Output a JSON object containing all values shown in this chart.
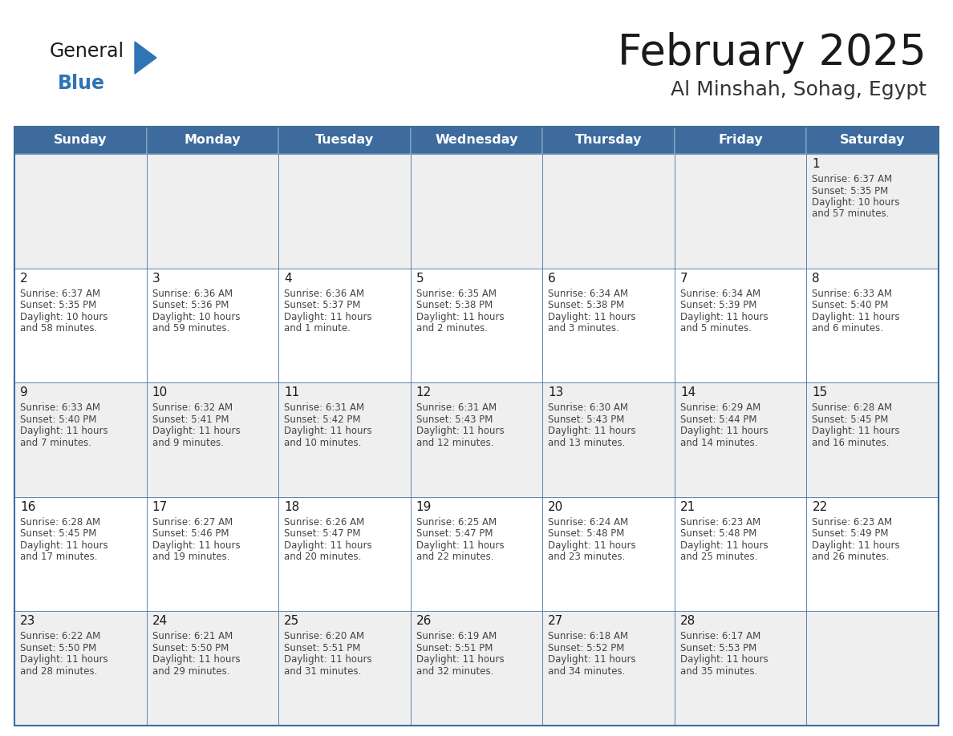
{
  "title": "February 2025",
  "subtitle": "Al Minshah, Sohag, Egypt",
  "days_of_week": [
    "Sunday",
    "Monday",
    "Tuesday",
    "Wednesday",
    "Thursday",
    "Friday",
    "Saturday"
  ],
  "header_bg": "#3D6B9E",
  "header_text": "#FFFFFF",
  "cell_bg_row0": "#EFEFEF",
  "cell_bg_row1": "#FFFFFF",
  "cell_bg_row2": "#EFEFEF",
  "cell_bg_row3": "#FFFFFF",
  "cell_bg_row4": "#EFEFEF",
  "border_color": "#3D6B9E",
  "title_color": "#1a1a1a",
  "subtitle_color": "#333333",
  "day_num_color": "#1a1a1a",
  "cell_text_color": "#444444",
  "logo_general_color": "#1a1a1a",
  "logo_blue_color": "#2E75B6",
  "logo_triangle_color": "#2E75B6",
  "calendar_data": [
    [
      null,
      null,
      null,
      null,
      null,
      null,
      {
        "day": 1,
        "sunrise": "6:37 AM",
        "sunset": "5:35 PM",
        "daylight": "10 hours",
        "daylight2": "and 57 minutes."
      }
    ],
    [
      {
        "day": 2,
        "sunrise": "6:37 AM",
        "sunset": "5:35 PM",
        "daylight": "10 hours",
        "daylight2": "and 58 minutes."
      },
      {
        "day": 3,
        "sunrise": "6:36 AM",
        "sunset": "5:36 PM",
        "daylight": "10 hours",
        "daylight2": "and 59 minutes."
      },
      {
        "day": 4,
        "sunrise": "6:36 AM",
        "sunset": "5:37 PM",
        "daylight": "11 hours",
        "daylight2": "and 1 minute."
      },
      {
        "day": 5,
        "sunrise": "6:35 AM",
        "sunset": "5:38 PM",
        "daylight": "11 hours",
        "daylight2": "and 2 minutes."
      },
      {
        "day": 6,
        "sunrise": "6:34 AM",
        "sunset": "5:38 PM",
        "daylight": "11 hours",
        "daylight2": "and 3 minutes."
      },
      {
        "day": 7,
        "sunrise": "6:34 AM",
        "sunset": "5:39 PM",
        "daylight": "11 hours",
        "daylight2": "and 5 minutes."
      },
      {
        "day": 8,
        "sunrise": "6:33 AM",
        "sunset": "5:40 PM",
        "daylight": "11 hours",
        "daylight2": "and 6 minutes."
      }
    ],
    [
      {
        "day": 9,
        "sunrise": "6:33 AM",
        "sunset": "5:40 PM",
        "daylight": "11 hours",
        "daylight2": "and 7 minutes."
      },
      {
        "day": 10,
        "sunrise": "6:32 AM",
        "sunset": "5:41 PM",
        "daylight": "11 hours",
        "daylight2": "and 9 minutes."
      },
      {
        "day": 11,
        "sunrise": "6:31 AM",
        "sunset": "5:42 PM",
        "daylight": "11 hours",
        "daylight2": "and 10 minutes."
      },
      {
        "day": 12,
        "sunrise": "6:31 AM",
        "sunset": "5:43 PM",
        "daylight": "11 hours",
        "daylight2": "and 12 minutes."
      },
      {
        "day": 13,
        "sunrise": "6:30 AM",
        "sunset": "5:43 PM",
        "daylight": "11 hours",
        "daylight2": "and 13 minutes."
      },
      {
        "day": 14,
        "sunrise": "6:29 AM",
        "sunset": "5:44 PM",
        "daylight": "11 hours",
        "daylight2": "and 14 minutes."
      },
      {
        "day": 15,
        "sunrise": "6:28 AM",
        "sunset": "5:45 PM",
        "daylight": "11 hours",
        "daylight2": "and 16 minutes."
      }
    ],
    [
      {
        "day": 16,
        "sunrise": "6:28 AM",
        "sunset": "5:45 PM",
        "daylight": "11 hours",
        "daylight2": "and 17 minutes."
      },
      {
        "day": 17,
        "sunrise": "6:27 AM",
        "sunset": "5:46 PM",
        "daylight": "11 hours",
        "daylight2": "and 19 minutes."
      },
      {
        "day": 18,
        "sunrise": "6:26 AM",
        "sunset": "5:47 PM",
        "daylight": "11 hours",
        "daylight2": "and 20 minutes."
      },
      {
        "day": 19,
        "sunrise": "6:25 AM",
        "sunset": "5:47 PM",
        "daylight": "11 hours",
        "daylight2": "and 22 minutes."
      },
      {
        "day": 20,
        "sunrise": "6:24 AM",
        "sunset": "5:48 PM",
        "daylight": "11 hours",
        "daylight2": "and 23 minutes."
      },
      {
        "day": 21,
        "sunrise": "6:23 AM",
        "sunset": "5:48 PM",
        "daylight": "11 hours",
        "daylight2": "and 25 minutes."
      },
      {
        "day": 22,
        "sunrise": "6:23 AM",
        "sunset": "5:49 PM",
        "daylight": "11 hours",
        "daylight2": "and 26 minutes."
      }
    ],
    [
      {
        "day": 23,
        "sunrise": "6:22 AM",
        "sunset": "5:50 PM",
        "daylight": "11 hours",
        "daylight2": "and 28 minutes."
      },
      {
        "day": 24,
        "sunrise": "6:21 AM",
        "sunset": "5:50 PM",
        "daylight": "11 hours",
        "daylight2": "and 29 minutes."
      },
      {
        "day": 25,
        "sunrise": "6:20 AM",
        "sunset": "5:51 PM",
        "daylight": "11 hours",
        "daylight2": "and 31 minutes."
      },
      {
        "day": 26,
        "sunrise": "6:19 AM",
        "sunset": "5:51 PM",
        "daylight": "11 hours",
        "daylight2": "and 32 minutes."
      },
      {
        "day": 27,
        "sunrise": "6:18 AM",
        "sunset": "5:52 PM",
        "daylight": "11 hours",
        "daylight2": "and 34 minutes."
      },
      {
        "day": 28,
        "sunrise": "6:17 AM",
        "sunset": "5:53 PM",
        "daylight": "11 hours",
        "daylight2": "and 35 minutes."
      },
      null
    ]
  ]
}
